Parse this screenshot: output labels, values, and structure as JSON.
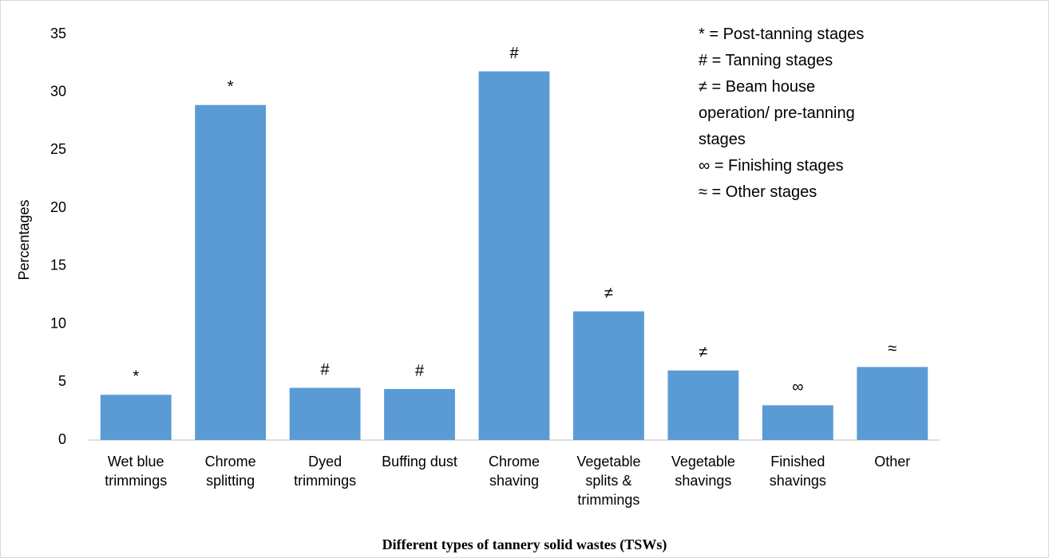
{
  "chart_data": {
    "type": "bar",
    "categories": [
      "Wet blue trimmings",
      "Chrome splitting",
      "Dyed trimmings",
      "Buffing dust",
      "Chrome shaving",
      "Vegetable splits & trimmings",
      "Vegetable shavings",
      "Finished shavings",
      "Other"
    ],
    "values": [
      3.9,
      28.9,
      4.5,
      4.4,
      31.8,
      11.1,
      6.0,
      3.0,
      6.3
    ],
    "bar_annotations": [
      "*",
      "*",
      "#",
      "#",
      "#",
      "≠",
      "≠",
      "∞",
      "≈"
    ],
    "color": "#5b9bd5",
    "ylim": [
      0,
      35
    ],
    "yticks": [
      0,
      5,
      10,
      15,
      20,
      25,
      30,
      35
    ],
    "y_label": "Percentages",
    "x_label": "Different types of tannery solid wastes (TSWs)",
    "legend_notes": [
      "* = Post-tanning stages",
      "# = Tanning stages",
      "≠ = Beam house operation/   pre-tanning stages",
      "∞ = Finishing stages",
      "≈ = Other stages"
    ],
    "grid": false
  }
}
